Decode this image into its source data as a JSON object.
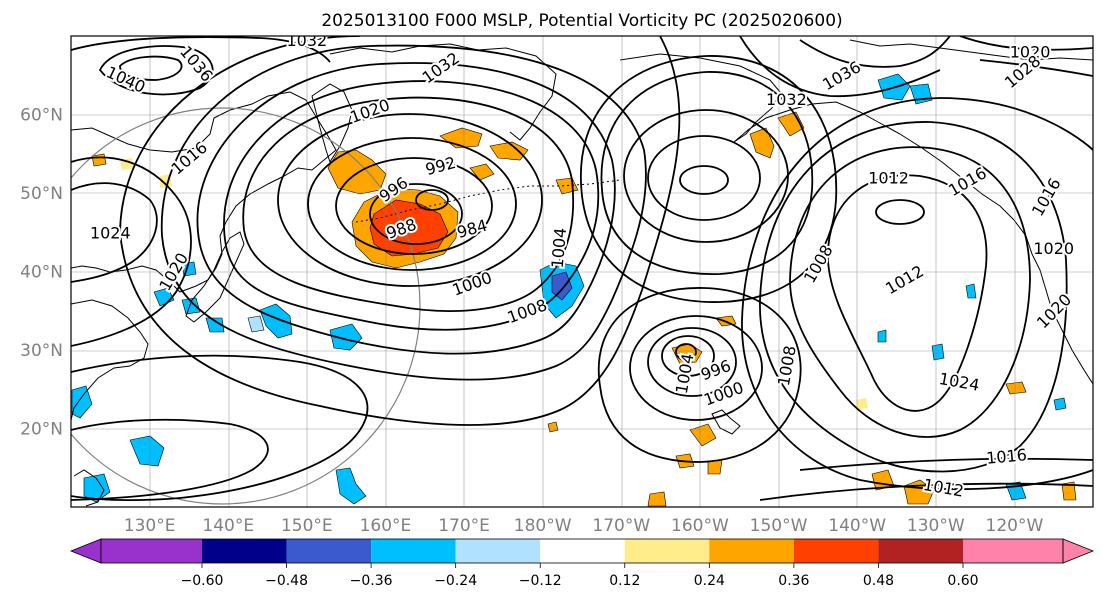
{
  "title": "2025013100 F000 MSLP, Potential Vorticity PC (2025020600)",
  "map": {
    "lat_labels": [
      {
        "text": "60°N",
        "lat": 60
      },
      {
        "text": "50°N",
        "lat": 50
      },
      {
        "text": "40°N",
        "lat": 40
      },
      {
        "text": "30°N",
        "lat": 30
      },
      {
        "text": "20°N",
        "lat": 20
      }
    ],
    "lon_labels": [
      {
        "text": "130°E",
        "lon": 130
      },
      {
        "text": "140°E",
        "lon": 140
      },
      {
        "text": "150°E",
        "lon": 150
      },
      {
        "text": "160°E",
        "lon": 160
      },
      {
        "text": "170°E",
        "lon": 170
      },
      {
        "text": "180°W",
        "lon": 180
      },
      {
        "text": "170°W",
        "lon": 190
      },
      {
        "text": "160°W",
        "lon": 200
      },
      {
        "text": "150°W",
        "lon": 210
      },
      {
        "text": "140°W",
        "lon": 220
      },
      {
        "text": "130°W",
        "lon": 230
      },
      {
        "text": "120°W",
        "lon": 240
      }
    ],
    "isobar_labels": [
      {
        "text": "1032",
        "lon": 150,
        "lat": 69.5,
        "rot": 0
      },
      {
        "text": "1036",
        "lon": 136,
        "lat": 66.5,
        "rot": 50
      },
      {
        "text": "1040",
        "lon": 127,
        "lat": 64.5,
        "rot": 25
      },
      {
        "text": "1032",
        "lon": 167,
        "lat": 66,
        "rot": -35
      },
      {
        "text": "1020",
        "lon": 158,
        "lat": 60.5,
        "rot": -20
      },
      {
        "text": "1016",
        "lon": 135,
        "lat": 54.5,
        "rot": -40
      },
      {
        "text": "992",
        "lon": 167,
        "lat": 53.5,
        "rot": -15
      },
      {
        "text": "996",
        "lon": 161,
        "lat": 50.5,
        "rot": -35
      },
      {
        "text": "988",
        "lon": 162,
        "lat": 45.5,
        "rot": -20
      },
      {
        "text": "984",
        "lon": 171,
        "lat": 45.5,
        "rot": -15
      },
      {
        "text": "1004",
        "lon": 182,
        "lat": 43,
        "rot": -85
      },
      {
        "text": "1000",
        "lon": 171,
        "lat": 38.5,
        "rot": -20
      },
      {
        "text": "1008",
        "lon": 178,
        "lat": 35,
        "rot": -20
      },
      {
        "text": "1036",
        "lon": 218,
        "lat": 65,
        "rot": -30
      },
      {
        "text": "1032",
        "lon": 211,
        "lat": 62,
        "rot": 0
      },
      {
        "text": "1012",
        "lon": 224,
        "lat": 52,
        "rot": 0
      },
      {
        "text": "1016",
        "lon": 234,
        "lat": 51.5,
        "rot": -30
      },
      {
        "text": "1020",
        "lon": 242,
        "lat": 68,
        "rot": 0
      },
      {
        "text": "1028",
        "lon": 241,
        "lat": 65.5,
        "rot": -40
      },
      {
        "text": "1016",
        "lon": 244,
        "lat": 49.5,
        "rot": -60
      },
      {
        "text": "1020",
        "lon": 245,
        "lat": 43,
        "rot": 0
      },
      {
        "text": "1020",
        "lon": 245,
        "lat": 35,
        "rot": -45
      },
      {
        "text": "1008",
        "lon": 215,
        "lat": 41,
        "rot": -60
      },
      {
        "text": "1012",
        "lon": 226,
        "lat": 39,
        "rot": -30
      },
      {
        "text": "1004",
        "lon": 198,
        "lat": 27,
        "rot": -80
      },
      {
        "text": "996",
        "lon": 202,
        "lat": 27.5,
        "rot": -20
      },
      {
        "text": "1000",
        "lon": 203,
        "lat": 24.5,
        "rot": -20
      },
      {
        "text": "1008",
        "lon": 211,
        "lat": 28,
        "rot": -80
      },
      {
        "text": "1024",
        "lon": 233,
        "lat": 26,
        "rot": 10
      },
      {
        "text": "1016",
        "lon": 239,
        "lat": 16.5,
        "rot": -5
      },
      {
        "text": "1012",
        "lon": 231,
        "lat": 12.5,
        "rot": 10
      },
      {
        "text": "1024",
        "lon": 125,
        "lat": 45,
        "rot": 0
      },
      {
        "text": "1020",
        "lon": 133,
        "lat": 40,
        "rot": -60
      }
    ]
  },
  "colorbar": {
    "ticks": [
      "−0.60",
      "−0.48",
      "−0.36",
      "−0.24",
      "−0.12",
      "0.12",
      "0.24",
      "0.36",
      "0.48",
      "0.60"
    ],
    "colors": [
      "#9932cc",
      "#00008b",
      "#3a5acd",
      "#00bfff",
      "#b0e2ff",
      "#ffffff",
      "#ffec8b",
      "#ffa500",
      "#ff4000",
      "#b22222",
      "#ff82ab"
    ]
  }
}
